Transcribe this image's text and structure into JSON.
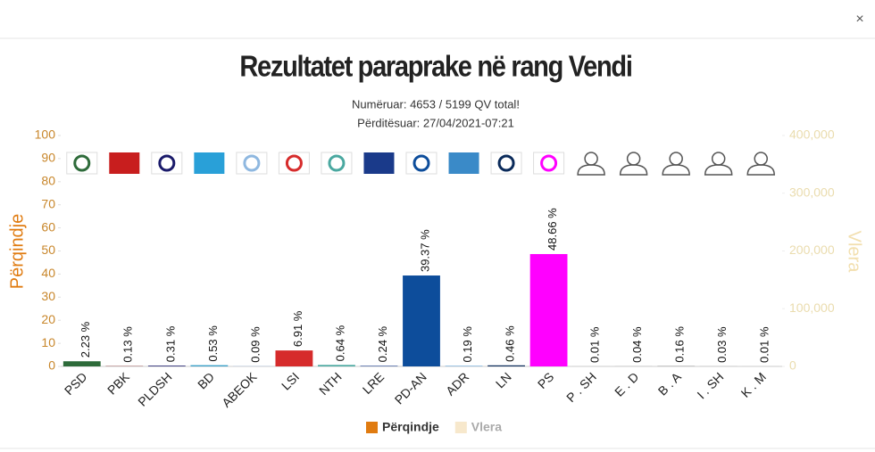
{
  "close_label": "×",
  "chart_data": {
    "type": "bar",
    "title": "Rezultatet paraprake në rang Vendi",
    "subtitle": [
      "Numëruar: 4653 / 5199 QV total!",
      "Përditësuar: 27/04/2021-07:21"
    ],
    "categories": [
      "PSD",
      "PBK",
      "PLDSH",
      "BD",
      "ABEOK",
      "LSI",
      "NTH",
      "LRE",
      "PD-AN",
      "ADR",
      "LN",
      "PS",
      "P . SH",
      "E . D",
      "B . A",
      "I . SH",
      "K . M"
    ],
    "series": [
      {
        "name": "Përqindje",
        "color": "#e07b10",
        "values": [
          2.23,
          0.13,
          0.31,
          0.53,
          0.09,
          6.91,
          0.64,
          0.24,
          39.37,
          0.19,
          0.46,
          48.66,
          0.01,
          0.04,
          0.16,
          0.03,
          0.01
        ],
        "value_labels": [
          "2.23 %",
          "0.13 %",
          "0.31 %",
          "0.53 %",
          "0.09 %",
          "6.91 %",
          "0.64 %",
          "0.24 %",
          "39.37 %",
          "0.19 %",
          "0.46 %",
          "48.66 %",
          "0.01 %",
          "0.04 %",
          "0.16 %",
          "0.03 %",
          "0.01 %"
        ],
        "bar_colors": [
          "#2e6b3a",
          "#7a1a1a",
          "#1a1a6a",
          "#3aa0c8",
          "#8fb8e0",
          "#d62b2b",
          "#4aa8a0",
          "#1a3a8a",
          "#0d4d9b",
          "#3a8ac8",
          "#0a2a5a",
          "#ff00ff",
          "#888888",
          "#888888",
          "#888888",
          "#888888",
          "#888888"
        ]
      },
      {
        "name": "Vlera",
        "color": "#f7e8cc",
        "axis": "y2"
      }
    ],
    "ylabel": "Përqindje",
    "y2label": "Vlera",
    "ylim": [
      0,
      100
    ],
    "yticks": [
      0,
      10,
      20,
      30,
      40,
      50,
      60,
      70,
      80,
      90,
      100
    ],
    "y2lim": [
      0,
      400000
    ],
    "y2ticks": [
      0,
      {
        "value": 100000,
        "label": "100,000"
      },
      {
        "value": 200000,
        "label": "200,000"
      },
      {
        "value": 300000,
        "label": "300,000"
      },
      {
        "value": 400000,
        "label": "400,000"
      }
    ]
  }
}
